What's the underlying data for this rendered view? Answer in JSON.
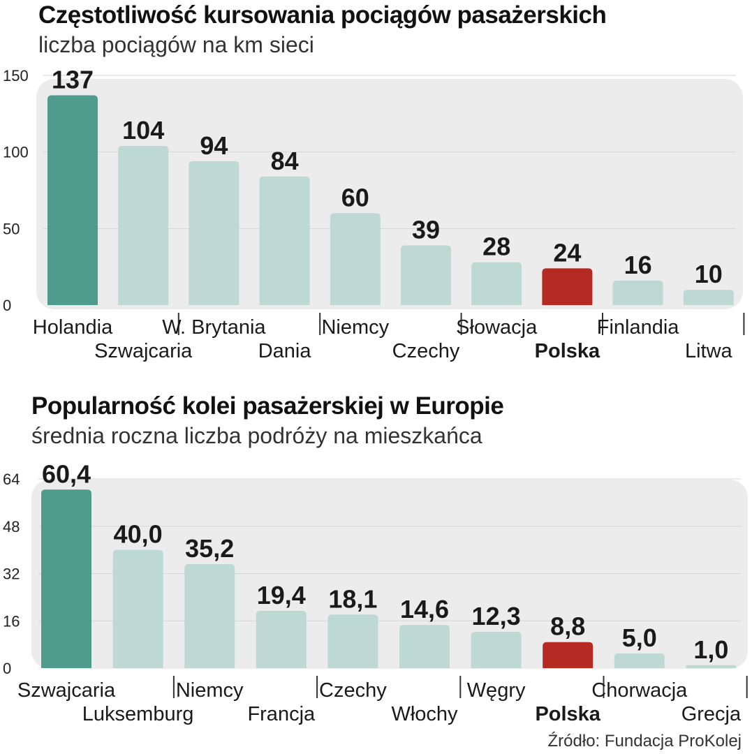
{
  "chart_data": [
    {
      "type": "bar",
      "title": "Częstotliwość kursowania pociągów pasażerskich",
      "subtitle": "liczba pociągów na km sieci",
      "categories": [
        "Holandia",
        "Szwajcaria",
        "W. Brytania",
        "Dania",
        "Niemcy",
        "Czechy",
        "Słowacja",
        "Polska",
        "Finlandia",
        "Litwa"
      ],
      "values": [
        137,
        104,
        94,
        84,
        60,
        39,
        28,
        24,
        16,
        10
      ],
      "value_labels": [
        "137",
        "104",
        "94",
        "84",
        "60",
        "39",
        "28",
        "24",
        "16",
        "10"
      ],
      "yticks": [
        0,
        50,
        100,
        150
      ],
      "ylim": [
        0,
        150
      ],
      "grid": true,
      "highlight_top_color": "#4f9c8f",
      "bar_color": "#bdd9d2",
      "highlight_color": "#b52a22",
      "highlight_category": "Polska"
    },
    {
      "type": "bar",
      "title": "Popularność kolei pasażerskiej w Europie",
      "subtitle": "średnia roczna liczba podróży na mieszkańca",
      "categories": [
        "Szwajcaria",
        "Luksemburg",
        "Niemcy",
        "Francja",
        "Czechy",
        "Włochy",
        "Węgry",
        "Polska",
        "Chorwacja",
        "Grecja"
      ],
      "values": [
        60.4,
        40.0,
        35.2,
        19.4,
        18.1,
        14.6,
        12.3,
        8.8,
        5.0,
        1.0
      ],
      "value_labels": [
        "60,4",
        "40,0",
        "35,2",
        "19,4",
        "18,1",
        "14,6",
        "12,3",
        "8,8",
        "5,0",
        "1,0"
      ],
      "yticks": [
        0,
        16,
        32,
        48,
        64
      ],
      "ylim": [
        0,
        64
      ],
      "grid": true,
      "highlight_top_color": "#4f9c8f",
      "bar_color": "#bdd9d2",
      "highlight_color": "#b52a22",
      "highlight_category": "Polska"
    }
  ],
  "source": "Źródło: Fundacja ProKolej"
}
